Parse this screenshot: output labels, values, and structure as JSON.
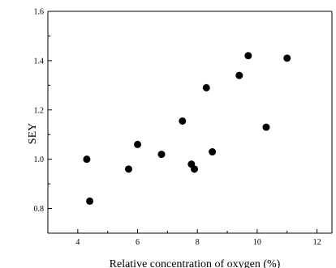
{
  "chart_data": {
    "type": "scatter",
    "title": "",
    "xlabel": "Relative concentration of oxygen (%)",
    "ylabel": "SEY",
    "xlim": [
      3.0,
      12.5
    ],
    "ylim": [
      0.7,
      1.6
    ],
    "x_ticks": [
      "4",
      "6",
      "8",
      "10",
      "12"
    ],
    "y_ticks": [
      "0.8",
      "1.0",
      "1.2",
      "1.4",
      "1.6"
    ],
    "grid": false,
    "legend": "none",
    "marker_color": "#000000",
    "series": [
      {
        "points": [
          {
            "x": 4.3,
            "y": 1.0
          },
          {
            "x": 4.4,
            "y": 0.83
          },
          {
            "x": 5.7,
            "y": 0.96
          },
          {
            "x": 6.0,
            "y": 1.06
          },
          {
            "x": 6.8,
            "y": 1.02
          },
          {
            "x": 7.5,
            "y": 1.155
          },
          {
            "x": 7.8,
            "y": 0.98
          },
          {
            "x": 7.9,
            "y": 0.96
          },
          {
            "x": 8.3,
            "y": 1.29
          },
          {
            "x": 8.5,
            "y": 1.03
          },
          {
            "x": 9.4,
            "y": 1.34
          },
          {
            "x": 9.7,
            "y": 1.42
          },
          {
            "x": 10.3,
            "y": 1.13
          },
          {
            "x": 11.0,
            "y": 1.41
          }
        ]
      }
    ]
  }
}
